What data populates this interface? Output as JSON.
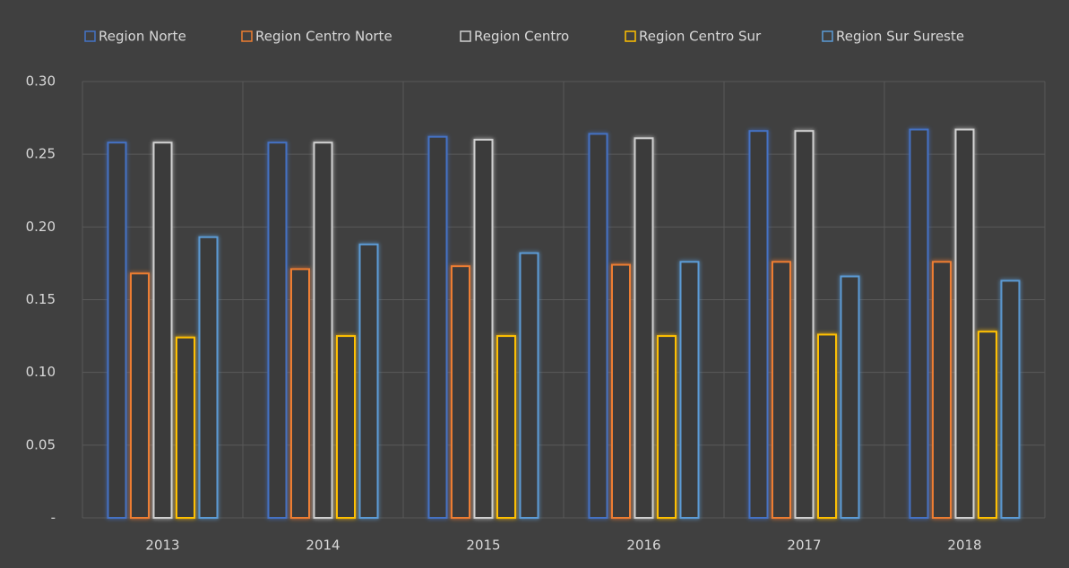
{
  "chart_data": {
    "type": "bar",
    "categories": [
      "2013",
      "2014",
      "2015",
      "2016",
      "2017",
      "2018"
    ],
    "series": [
      {
        "name": "Region Norte",
        "color": "#4472c4",
        "values": [
          0.258,
          0.258,
          0.262,
          0.264,
          0.266,
          0.267
        ]
      },
      {
        "name": "Region Centro Norte",
        "color": "#ed7d31",
        "values": [
          0.168,
          0.171,
          0.173,
          0.174,
          0.176,
          0.176
        ]
      },
      {
        "name": "Region Centro",
        "color": "#d0d0d0",
        "values": [
          0.258,
          0.258,
          0.26,
          0.261,
          0.266,
          0.267
        ]
      },
      {
        "name": "Region Centro Sur",
        "color": "#ffc000",
        "values": [
          0.124,
          0.125,
          0.125,
          0.125,
          0.126,
          0.128
        ]
      },
      {
        "name": "Region Sur Sureste",
        "color": "#5b9bd5",
        "values": [
          0.193,
          0.188,
          0.182,
          0.176,
          0.166,
          0.163
        ]
      }
    ],
    "ylim": [
      0,
      0.3
    ],
    "yticks": [
      {
        "value": 0,
        "label": "-"
      },
      0.05,
      {
        "value": 0.1,
        "label": "0.10"
      },
      0.15,
      {
        "value": 0.2,
        "label": "0.20"
      },
      0.25,
      {
        "value": 0.3,
        "label": "0.30"
      }
    ],
    "grid": true,
    "legend": "top"
  }
}
